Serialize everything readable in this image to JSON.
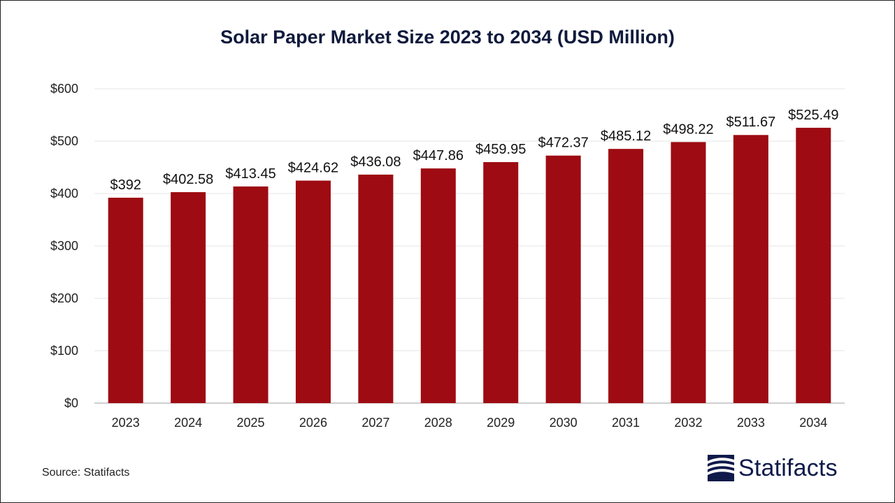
{
  "chart_data": {
    "type": "bar",
    "title": "Solar Paper Market Size 2023 to 2034 (USD Million)",
    "xlabel": "",
    "ylabel": "",
    "categories": [
      "2023",
      "2024",
      "2025",
      "2026",
      "2027",
      "2028",
      "2029",
      "2030",
      "2031",
      "2032",
      "2033",
      "2034"
    ],
    "values": [
      392,
      402.58,
      413.45,
      424.62,
      436.08,
      447.86,
      459.95,
      472.37,
      485.12,
      498.22,
      511.67,
      525.49
    ],
    "data_labels": [
      "$392",
      "$402.58",
      "$413.45",
      "$424.62",
      "$436.08",
      "$447.86",
      "$459.95",
      "$472.37",
      "$485.12",
      "$498.22",
      "$511.67",
      "$525.49"
    ],
    "ylim": [
      0,
      600
    ],
    "yticks": [
      0,
      100,
      200,
      300,
      400,
      500,
      600
    ],
    "ytick_labels": [
      "$0",
      "$100",
      "$200",
      "$300",
      "$400",
      "$500",
      "$600"
    ],
    "grid": true,
    "legend": "none",
    "bar_color": "#9e0b12",
    "grid_color": "#e6e6e6",
    "axis_color": "#bfbfbf"
  },
  "footer": {
    "source": "Source: Statifacts",
    "logo_text": "Statifacts",
    "logo_icon": "statifacts-logo-icon",
    "logo_color": "#0f1a4a"
  }
}
